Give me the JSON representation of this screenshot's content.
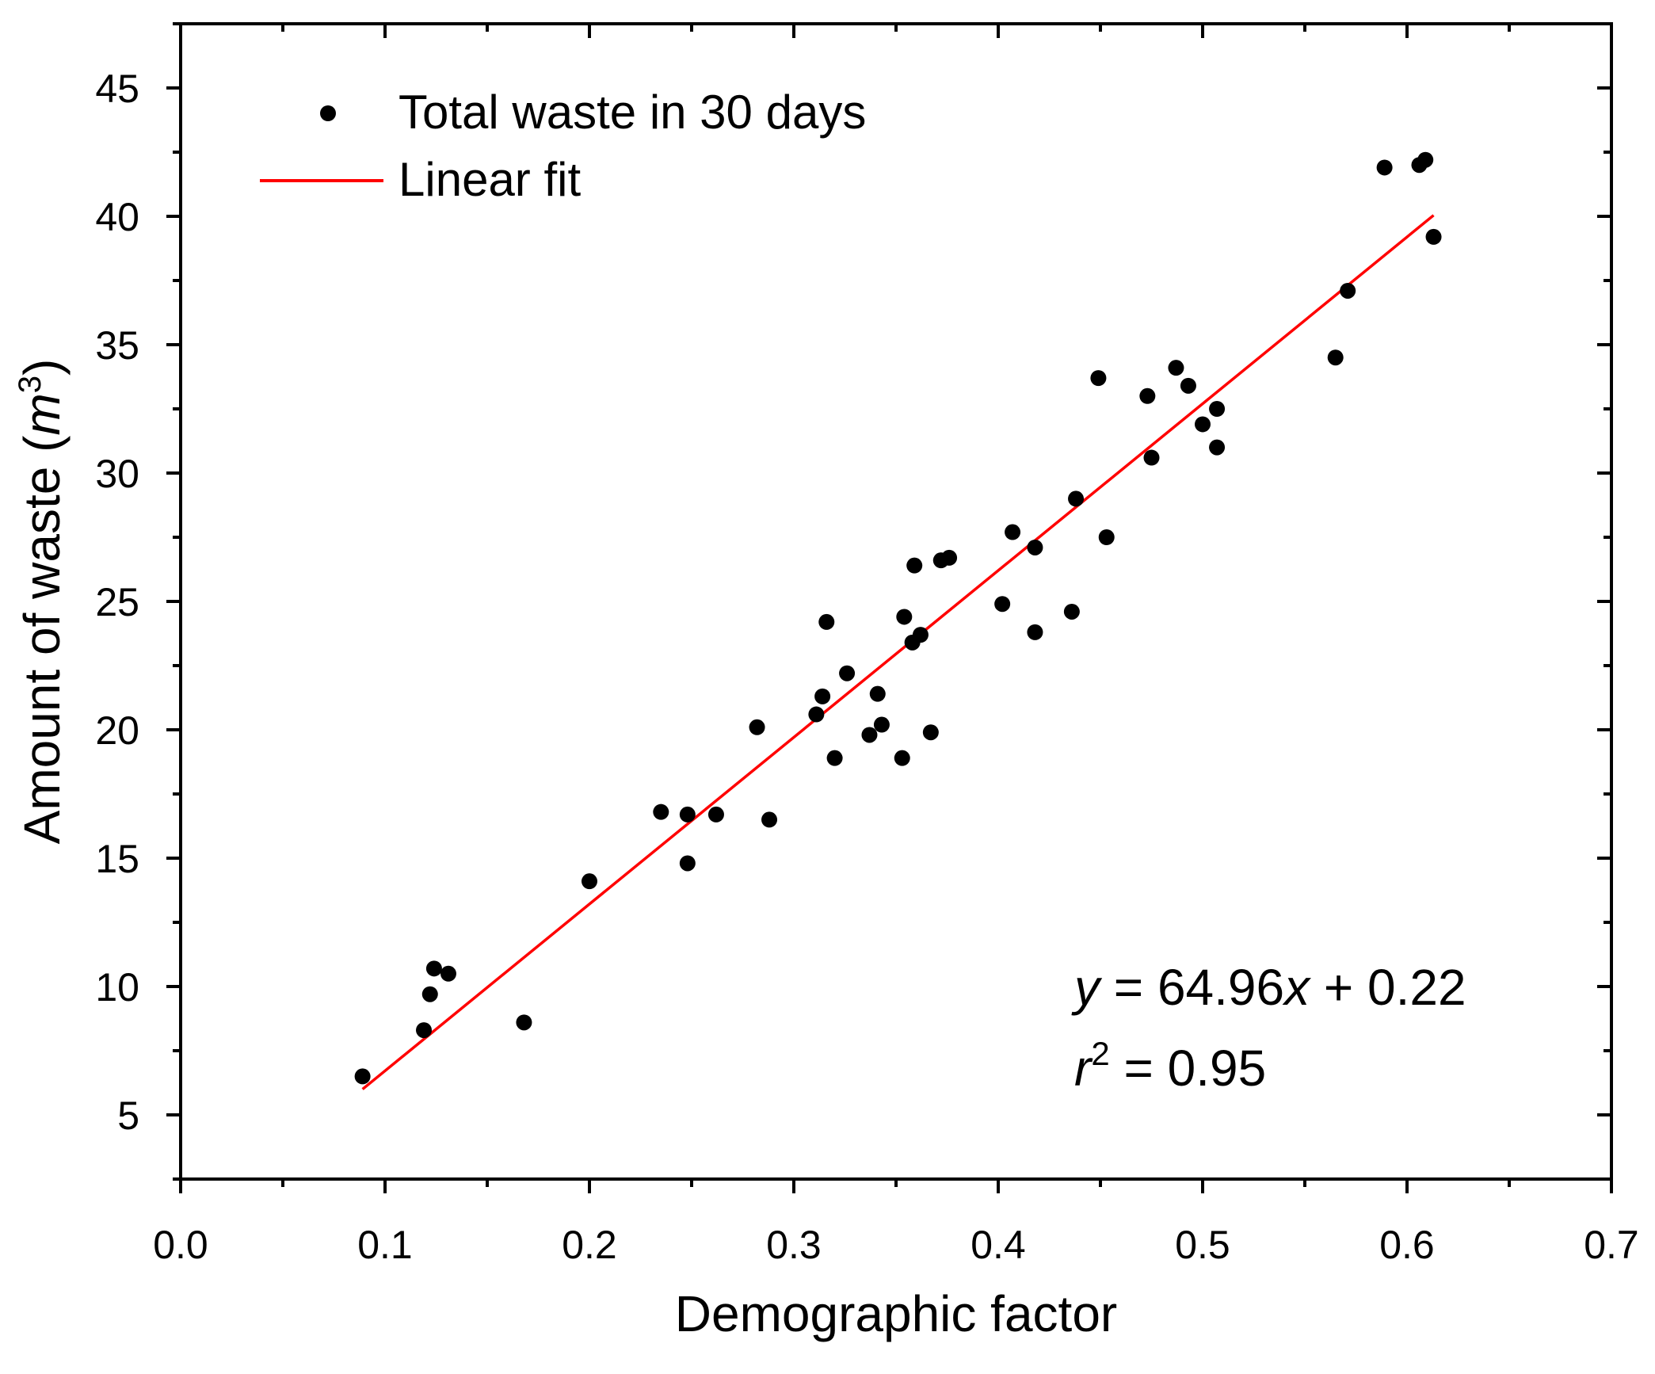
{
  "chart_data": {
    "type": "scatter",
    "xlabel": "Demographic factor",
    "ylabel": {
      "prefix": "Amount of waste (",
      "unit": "m",
      "exponent": "3",
      "suffix": ")"
    },
    "xlim": [
      0.0,
      0.7
    ],
    "ylim": [
      2.5,
      47.5
    ],
    "x_ticks": [
      "0.0",
      "0.1",
      "0.2",
      "0.3",
      "0.4",
      "0.5",
      "0.6",
      "0.7"
    ],
    "y_ticks": [
      "5",
      "10",
      "15",
      "20",
      "25",
      "30",
      "35",
      "40",
      "45"
    ],
    "grid": false,
    "legend_position": "top-left",
    "legend": {
      "points": "Total waste in 30 days",
      "fit": "Linear fit"
    },
    "colors": {
      "points": "#000000",
      "fit": "#ff0000",
      "axes": "#000000"
    },
    "series": [
      {
        "name": "Total waste in 30 days",
        "x": [
          0.089,
          0.119,
          0.122,
          0.124,
          0.131,
          0.168,
          0.2,
          0.235,
          0.248,
          0.248,
          0.262,
          0.282,
          0.288,
          0.311,
          0.314,
          0.316,
          0.32,
          0.326,
          0.337,
          0.341,
          0.343,
          0.353,
          0.354,
          0.358,
          0.359,
          0.362,
          0.367,
          0.372,
          0.376,
          0.402,
          0.407,
          0.418,
          0.418,
          0.436,
          0.438,
          0.449,
          0.453,
          0.473,
          0.475,
          0.487,
          0.493,
          0.5,
          0.507,
          0.507,
          0.565,
          0.571,
          0.589,
          0.606,
          0.609,
          0.613
        ],
        "y": [
          6.5,
          8.3,
          9.7,
          10.7,
          10.5,
          8.6,
          14.1,
          16.8,
          16.7,
          14.8,
          16.7,
          20.1,
          16.5,
          20.6,
          21.3,
          24.2,
          18.9,
          22.2,
          19.8,
          21.4,
          20.2,
          18.9,
          24.4,
          23.4,
          26.4,
          23.7,
          19.9,
          26.6,
          26.7,
          24.9,
          27.7,
          23.8,
          27.1,
          24.6,
          29.0,
          33.7,
          27.5,
          33.0,
          30.6,
          34.1,
          33.4,
          31.9,
          32.5,
          31.0,
          34.5,
          37.1,
          41.9,
          42.0,
          42.2,
          39.2
        ]
      },
      {
        "name": "Linear fit",
        "slope": 64.96,
        "intercept": 0.22,
        "x_range": [
          0.089,
          0.613
        ]
      }
    ],
    "annotations": {
      "equation": {
        "y": "y",
        "eq": " = 64.96",
        "x": "x",
        "rest": " + 0.22"
      },
      "r2": {
        "r": "r",
        "exp": "2",
        "rest": " = 0.95"
      }
    }
  }
}
